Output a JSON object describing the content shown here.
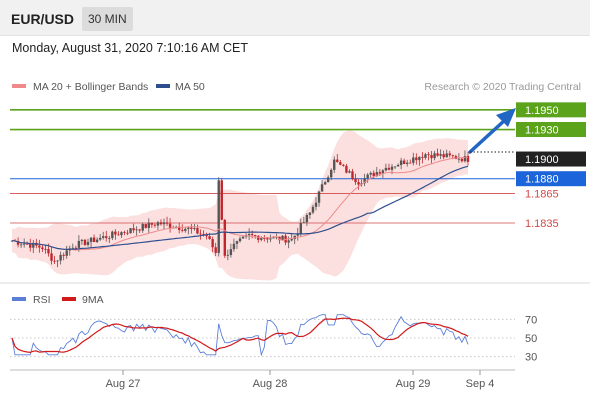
{
  "header": {
    "symbol": "EUR/USD",
    "timeframe": "30 MIN"
  },
  "datetime": "Monday, August 31, 2020 7:10:16 AM CET",
  "watermark": "Research © 2020 Trading Central",
  "colors": {
    "bollinger": "#f08a8a",
    "bollinger_fill": "#fbdada",
    "ma50": "#2e4f8e",
    "green": "#5aa31a",
    "blue": "#1c64d9",
    "red": "#d14a4a",
    "dark": "#222222",
    "candle_up": "#555555",
    "candle_down": "#c0262b",
    "rsi": "#5b7fd8",
    "rsi_ma": "#d11a1a"
  },
  "chart_data": [
    {
      "type": "candlestick",
      "legend": [
        {
          "name": "MA 20 + Bollinger Bands",
          "color": "#f08a8a"
        },
        {
          "name": "MA 50",
          "color": "#2e4f8e"
        }
      ],
      "x_ticks": [
        "Aug 27",
        "Aug 28",
        "Aug 29",
        "Sep 4"
      ],
      "ylim": [
        1.1775,
        1.196
      ],
      "levels": [
        {
          "label": "1.1950",
          "value": 1.195,
          "style": "green-box"
        },
        {
          "label": "1.1930",
          "value": 1.193,
          "style": "green-box"
        },
        {
          "label": "1.1900",
          "value": 1.19,
          "style": "dark-box"
        },
        {
          "label": "1.1880",
          "value": 1.188,
          "style": "blue-box"
        },
        {
          "label": "1.1865",
          "value": 1.1865,
          "style": "red-text"
        },
        {
          "label": "1.1835",
          "value": 1.1835,
          "style": "red-text"
        }
      ],
      "key_points": [
        {
          "t": 0,
          "v": 1.1817
        },
        {
          "t": 10,
          "v": 1.181
        },
        {
          "t": 14,
          "v": 1.1796
        },
        {
          "t": 20,
          "v": 1.1812
        },
        {
          "t": 38,
          "v": 1.1827
        },
        {
          "t": 48,
          "v": 1.1835
        },
        {
          "t": 58,
          "v": 1.1829
        },
        {
          "t": 64,
          "v": 1.1822
        },
        {
          "t": 67,
          "v": 1.1805
        },
        {
          "t": 68,
          "v": 1.188
        },
        {
          "t": 70,
          "v": 1.18
        },
        {
          "t": 72,
          "v": 1.181
        },
        {
          "t": 78,
          "v": 1.1822
        },
        {
          "t": 92,
          "v": 1.1818
        },
        {
          "t": 98,
          "v": 1.1845
        },
        {
          "t": 106,
          "v": 1.1898
        },
        {
          "t": 110,
          "v": 1.1888
        },
        {
          "t": 114,
          "v": 1.1877
        },
        {
          "t": 122,
          "v": 1.189
        },
        {
          "t": 136,
          "v": 1.1905
        },
        {
          "t": 145,
          "v": 1.1902
        },
        {
          "t": 150,
          "v": 1.19
        }
      ]
    },
    {
      "type": "line",
      "title": "RSI",
      "legend": [
        {
          "name": "RSI",
          "color": "#5b7fd8"
        },
        {
          "name": "9MA",
          "color": "#d11a1a"
        }
      ],
      "y_ticks": [
        70,
        50,
        30
      ],
      "ylim": [
        20,
        80
      ]
    }
  ]
}
